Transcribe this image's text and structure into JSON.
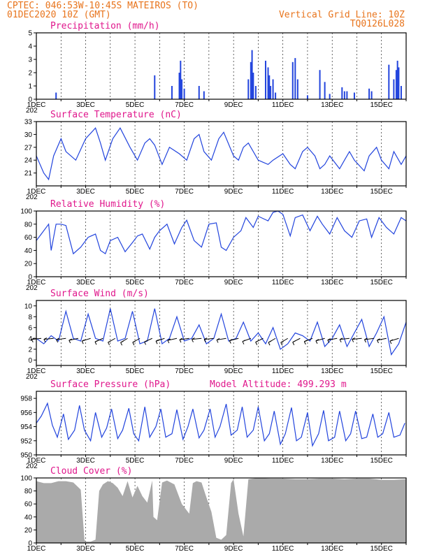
{
  "header": {
    "line1": "CPTEC:   046:53W-10:45S   MATEIROS (TO)",
    "line2": "01DEC2020 10Z (GMT)",
    "right1": "Vertical Grid Line: 10Z",
    "right2": "TQ0126L028",
    "year_fragment": "202"
  },
  "colors": {
    "line": "#2244dd",
    "cloud": "#aaaaaa",
    "title": "#e0178c",
    "header": "#e8741c"
  },
  "chart_data": [
    {
      "type": "bar",
      "title": "Precipitation (mm/h)",
      "x_tick_labels": [
        "1DEC",
        "3DEC",
        "5DEC",
        "7DEC",
        "9DEC",
        "11DEC",
        "13DEC",
        "15DEC"
      ],
      "x_range_days": [
        1,
        16
      ],
      "ylim": [
        0,
        5
      ],
      "yticks": [
        0,
        1,
        2,
        3,
        4,
        5
      ],
      "grid": "vertical dashed",
      "x": [
        1.8,
        5.8,
        6.5,
        6.8,
        6.85,
        6.9,
        7.0,
        7.6,
        7.8,
        9.6,
        9.7,
        9.75,
        9.8,
        9.9,
        10.3,
        10.4,
        10.45,
        10.5,
        10.6,
        10.7,
        11.4,
        11.5,
        11.6,
        12.0,
        12.5,
        12.7,
        12.9,
        13.4,
        13.5,
        13.6,
        13.9,
        14.5,
        14.6,
        15.3,
        15.5,
        15.6,
        15.65,
        15.7,
        15.8
      ],
      "values": [
        0.5,
        1.8,
        1.0,
        2.0,
        2.9,
        1.5,
        0.8,
        1.0,
        0.6,
        1.5,
        2.8,
        3.7,
        2.0,
        1.0,
        2.9,
        2.4,
        1.8,
        1.0,
        1.5,
        0.5,
        2.8,
        3.1,
        1.5,
        0.3,
        2.2,
        1.3,
        0.4,
        0.9,
        0.6,
        0.6,
        0.5,
        0.8,
        0.6,
        2.6,
        1.5,
        2.2,
        2.9,
        2.4,
        1.0
      ]
    },
    {
      "type": "line",
      "title": "Surface Temperature (nC)",
      "ylim": [
        18,
        33
      ],
      "yticks": [
        21,
        24,
        27,
        30,
        33
      ],
      "x": [
        1.0,
        1.3,
        1.5,
        1.7,
        2.0,
        2.2,
        2.6,
        3.0,
        3.4,
        3.6,
        3.8,
        4.1,
        4.4,
        4.8,
        5.1,
        5.4,
        5.6,
        5.8,
        6.1,
        6.4,
        6.8,
        7.1,
        7.4,
        7.6,
        7.8,
        8.1,
        8.4,
        8.6,
        9.0,
        9.2,
        9.4,
        9.6,
        10.0,
        10.2,
        10.4,
        10.6,
        11.0,
        11.3,
        11.5,
        11.8,
        12.0,
        12.3,
        12.5,
        12.7,
        12.9,
        13.3,
        13.5,
        13.7,
        13.9,
        14.3,
        14.5,
        14.8,
        15.0,
        15.3,
        15.5,
        15.8,
        16.0
      ],
      "values": [
        25,
        21,
        19.5,
        25,
        29,
        26,
        24,
        29,
        31.5,
        28,
        24,
        29,
        31.5,
        27,
        24,
        28,
        29,
        27.5,
        23,
        27,
        25.5,
        24,
        29,
        30,
        26,
        24,
        29,
        30.5,
        25,
        24,
        27,
        28,
        24,
        23.5,
        23,
        24,
        25.5,
        23,
        22,
        26,
        27,
        25,
        22,
        23,
        25,
        22,
        24,
        26,
        24,
        21.5,
        25,
        27,
        24,
        22,
        26,
        23,
        25
      ],
      "grid": "vertical dashed"
    },
    {
      "type": "line",
      "title": "Relative Humidity (%)",
      "ylim": [
        0,
        100
      ],
      "yticks": [
        0,
        20,
        40,
        60,
        80,
        100
      ],
      "x": [
        1.0,
        1.2,
        1.5,
        1.6,
        1.8,
        2.0,
        2.2,
        2.5,
        2.8,
        3.1,
        3.4,
        3.6,
        3.8,
        4.0,
        4.3,
        4.6,
        4.9,
        5.1,
        5.3,
        5.6,
        5.8,
        6.0,
        6.3,
        6.6,
        6.9,
        7.1,
        7.4,
        7.7,
        8.0,
        8.3,
        8.5,
        8.7,
        9.0,
        9.3,
        9.5,
        9.8,
        10.0,
        10.4,
        10.6,
        10.8,
        11.0,
        11.3,
        11.5,
        11.8,
        12.1,
        12.4,
        12.6,
        12.9,
        13.2,
        13.5,
        13.8,
        14.1,
        14.4,
        14.6,
        14.9,
        15.2,
        15.5,
        15.8,
        16.0
      ],
      "values": [
        55,
        65,
        80,
        40,
        80,
        80,
        78,
        35,
        45,
        60,
        65,
        40,
        35,
        55,
        60,
        38,
        52,
        62,
        65,
        42,
        60,
        70,
        80,
        50,
        75,
        86,
        55,
        45,
        80,
        82,
        45,
        40,
        60,
        70,
        90,
        75,
        92,
        85,
        98,
        100,
        95,
        62,
        90,
        94,
        70,
        92,
        80,
        65,
        90,
        70,
        60,
        85,
        88,
        60,
        90,
        75,
        65,
        90,
        85
      ],
      "grid": "vertical dashed"
    },
    {
      "type": "line",
      "title": "Surface Wind (m/s)",
      "ylim": [
        -1,
        11
      ],
      "yticks": [
        0,
        2,
        4,
        6,
        8,
        10
      ],
      "x": [
        1.0,
        1.3,
        1.6,
        1.9,
        2.2,
        2.5,
        2.8,
        3.1,
        3.4,
        3.7,
        4.0,
        4.3,
        4.6,
        4.9,
        5.2,
        5.5,
        5.8,
        6.1,
        6.4,
        6.7,
        7.0,
        7.3,
        7.6,
        7.9,
        8.2,
        8.5,
        8.8,
        9.1,
        9.4,
        9.7,
        10.0,
        10.3,
        10.6,
        10.9,
        11.2,
        11.5,
        11.8,
        12.1,
        12.4,
        12.7,
        13.0,
        13.3,
        13.6,
        13.9,
        14.2,
        14.5,
        14.8,
        15.1,
        15.4,
        15.7,
        16.0
      ],
      "values": [
        4,
        3,
        4.5,
        3.5,
        9,
        4,
        3.5,
        8.5,
        4,
        3.5,
        9.5,
        3.5,
        4,
        9,
        3,
        3.5,
        9.5,
        3,
        4,
        8,
        3.5,
        4,
        6.5,
        3,
        4,
        8.5,
        3.5,
        4,
        7,
        3.5,
        5,
        3,
        6,
        2,
        3,
        5,
        4.5,
        3.5,
        7,
        2.5,
        4,
        6.5,
        2.5,
        5,
        7.5,
        2.5,
        5,
        8,
        1,
        3,
        7
      ],
      "vector_arrows": "shown as black wind arrows",
      "grid": "vertical dashed"
    },
    {
      "type": "line",
      "title": "Surface Pressure (hPa)",
      "subtitle": "Model Altitude: 499.293 m",
      "ylim": [
        950,
        959
      ],
      "yticks": [
        950,
        952,
        954,
        956,
        958
      ],
      "x": [
        1.0,
        1.2,
        1.45,
        1.65,
        1.85,
        2.1,
        2.3,
        2.55,
        2.75,
        2.95,
        3.2,
        3.4,
        3.65,
        3.85,
        4.05,
        4.3,
        4.5,
        4.75,
        4.95,
        5.15,
        5.4,
        5.6,
        5.85,
        6.05,
        6.25,
        6.5,
        6.7,
        6.95,
        7.15,
        7.35,
        7.6,
        7.8,
        8.05,
        8.25,
        8.45,
        8.7,
        8.9,
        9.15,
        9.35,
        9.55,
        9.8,
        10.0,
        10.25,
        10.45,
        10.65,
        10.9,
        11.1,
        11.35,
        11.55,
        11.75,
        12.0,
        12.2,
        12.45,
        12.65,
        12.85,
        13.1,
        13.3,
        13.55,
        13.75,
        13.95,
        14.2,
        14.4,
        14.65,
        14.85,
        15.05,
        15.3,
        15.5,
        15.75,
        15.95
      ],
      "values": [
        954.5,
        955.5,
        957.3,
        954.2,
        952.5,
        955.8,
        952.2,
        953.5,
        957,
        953.5,
        952,
        956,
        952.5,
        953.8,
        956.5,
        952.3,
        953.5,
        956.6,
        953,
        952,
        956.8,
        952.5,
        954,
        956.5,
        952.5,
        953,
        956.4,
        952.2,
        954,
        956.5,
        952.4,
        953.5,
        956.5,
        952.5,
        954,
        957.2,
        952.8,
        953.5,
        956.8,
        952.5,
        953.5,
        956.8,
        952,
        953,
        956.2,
        951.5,
        953,
        956.7,
        952,
        952.5,
        956,
        951.3,
        953,
        956.3,
        952,
        952.5,
        956.2,
        952,
        953,
        956.2,
        952.3,
        952.5,
        955.8,
        952.5,
        953,
        956,
        952.5,
        952.8,
        954.5
      ],
      "grid": "vertical dashed"
    },
    {
      "type": "area",
      "title": "Cloud Cover (%)",
      "ylim": [
        0,
        100
      ],
      "yticks": [
        0,
        20,
        40,
        60,
        80,
        100
      ],
      "x": [
        1.0,
        1.3,
        1.6,
        1.9,
        2.2,
        2.5,
        2.8,
        2.95,
        3.0,
        3.2,
        3.4,
        3.55,
        3.7,
        3.9,
        4.1,
        4.3,
        4.5,
        4.7,
        4.9,
        5.1,
        5.3,
        5.5,
        5.7,
        5.75,
        5.9,
        6.1,
        6.3,
        6.6,
        6.9,
        7.2,
        7.35,
        7.5,
        7.7,
        7.9,
        8.1,
        8.3,
        8.5,
        8.7,
        8.9,
        9.0,
        9.2,
        9.4,
        9.6,
        9.8,
        10.0,
        10.5,
        11.0,
        11.5,
        12.0,
        12.5,
        13.0,
        13.5,
        14.0,
        14.5,
        15.0,
        15.5,
        16.0
      ],
      "values": [
        95,
        92,
        92,
        95,
        95,
        93,
        82,
        5,
        2,
        2,
        5,
        80,
        90,
        95,
        92,
        85,
        72,
        95,
        70,
        88,
        72,
        62,
        96,
        40,
        35,
        93,
        96,
        90,
        60,
        45,
        92,
        95,
        93,
        70,
        48,
        8,
        5,
        12,
        92,
        98,
        45,
        10,
        98,
        99,
        100,
        99,
        99,
        98,
        98,
        99,
        99,
        98,
        99,
        99,
        97,
        97,
        98
      ],
      "grid": "vertical dashed"
    }
  ]
}
